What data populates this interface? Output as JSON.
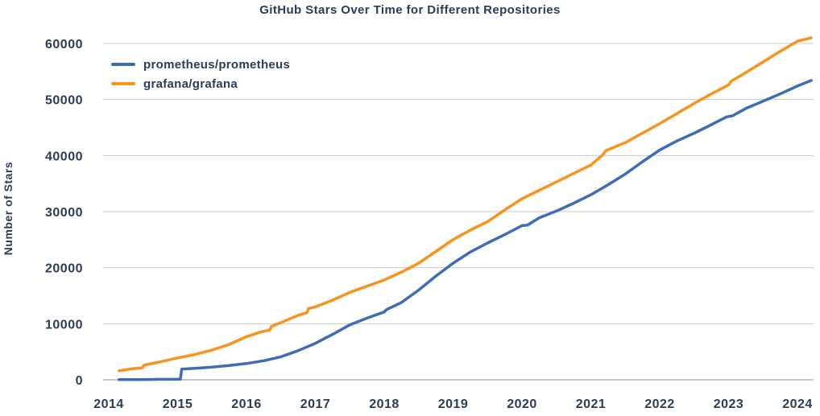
{
  "title": "GitHub Stars Over Time for Different Repositories",
  "colors": {
    "text": "#2d3c55",
    "grid": "#c9c9c9",
    "zero_line": "#8f8f8f",
    "background": "#ffffff",
    "prometheus_line": "#3e6db5",
    "grafana_line": "#f7941e"
  },
  "chart_data": {
    "type": "line",
    "title": "GitHub Stars Over Time for Different Repositories",
    "xlabel": "",
    "ylabel": "Number of Stars",
    "x_ticks": [
      2014,
      2015,
      2016,
      2017,
      2018,
      2019,
      2020,
      2021,
      2022,
      2023,
      2024
    ],
    "y_ticks": [
      0,
      10000,
      20000,
      30000,
      40000,
      50000,
      60000
    ],
    "xlim": [
      2013.9,
      2024.3
    ],
    "ylim": [
      0,
      62500
    ],
    "grid": "horizontal-only",
    "legend_position": "upper-left",
    "legend_frame": false,
    "series": [
      {
        "name": "prometheus/prometheus",
        "color": "#3e6db5",
        "points": [
          [
            2014.15,
            30
          ],
          [
            2014.5,
            50
          ],
          [
            2014.75,
            80
          ],
          [
            2015.0,
            100
          ],
          [
            2015.04,
            120
          ],
          [
            2015.06,
            1900
          ],
          [
            2015.25,
            2050
          ],
          [
            2015.5,
            2250
          ],
          [
            2015.75,
            2550
          ],
          [
            2016.0,
            2900
          ],
          [
            2016.25,
            3400
          ],
          [
            2016.5,
            4100
          ],
          [
            2016.75,
            5200
          ],
          [
            2017.0,
            6500
          ],
          [
            2017.25,
            8100
          ],
          [
            2017.5,
            9800
          ],
          [
            2017.75,
            11000
          ],
          [
            2018.0,
            12100
          ],
          [
            2018.03,
            12500
          ],
          [
            2018.25,
            13800
          ],
          [
            2018.5,
            16000
          ],
          [
            2018.75,
            18500
          ],
          [
            2019.0,
            20800
          ],
          [
            2019.25,
            22800
          ],
          [
            2019.5,
            24400
          ],
          [
            2019.75,
            25900
          ],
          [
            2020.0,
            27500
          ],
          [
            2020.08,
            27600
          ],
          [
            2020.25,
            28900
          ],
          [
            2020.5,
            30100
          ],
          [
            2020.75,
            31500
          ],
          [
            2021.0,
            33000
          ],
          [
            2021.25,
            34800
          ],
          [
            2021.5,
            36700
          ],
          [
            2021.75,
            38900
          ],
          [
            2022.0,
            41000
          ],
          [
            2022.25,
            42600
          ],
          [
            2022.5,
            44000
          ],
          [
            2022.75,
            45500
          ],
          [
            2022.97,
            46900
          ],
          [
            2023.06,
            47100
          ],
          [
            2023.25,
            48400
          ],
          [
            2023.5,
            49700
          ],
          [
            2023.75,
            51000
          ],
          [
            2024.0,
            52400
          ],
          [
            2024.2,
            53400
          ]
        ]
      },
      {
        "name": "grafana/grafana",
        "color": "#f7941e",
        "points": [
          [
            2014.15,
            1600
          ],
          [
            2014.3,
            1900
          ],
          [
            2014.49,
            2150
          ],
          [
            2014.51,
            2600
          ],
          [
            2014.75,
            3200
          ],
          [
            2015.0,
            3900
          ],
          [
            2015.25,
            4500
          ],
          [
            2015.5,
            5300
          ],
          [
            2015.75,
            6300
          ],
          [
            2016.0,
            7700
          ],
          [
            2016.2,
            8500
          ],
          [
            2016.34,
            8900
          ],
          [
            2016.36,
            9500
          ],
          [
            2016.5,
            10200
          ],
          [
            2016.75,
            11500
          ],
          [
            2016.88,
            12000
          ],
          [
            2016.9,
            12700
          ],
          [
            2017.0,
            13000
          ],
          [
            2017.25,
            14200
          ],
          [
            2017.5,
            15600
          ],
          [
            2017.75,
            16700
          ],
          [
            2018.0,
            17800
          ],
          [
            2018.25,
            19200
          ],
          [
            2018.5,
            20800
          ],
          [
            2018.75,
            22900
          ],
          [
            2019.0,
            25000
          ],
          [
            2019.25,
            26700
          ],
          [
            2019.5,
            28200
          ],
          [
            2019.75,
            30300
          ],
          [
            2020.0,
            32300
          ],
          [
            2020.25,
            33800
          ],
          [
            2020.5,
            35300
          ],
          [
            2020.75,
            36800
          ],
          [
            2021.0,
            38300
          ],
          [
            2021.18,
            40200
          ],
          [
            2021.22,
            40900
          ],
          [
            2021.5,
            42300
          ],
          [
            2021.75,
            44000
          ],
          [
            2022.0,
            45700
          ],
          [
            2022.25,
            47500
          ],
          [
            2022.5,
            49300
          ],
          [
            2022.75,
            51000
          ],
          [
            2023.0,
            52600
          ],
          [
            2023.04,
            53300
          ],
          [
            2023.25,
            54800
          ],
          [
            2023.5,
            56700
          ],
          [
            2023.75,
            58600
          ],
          [
            2024.0,
            60400
          ],
          [
            2024.2,
            61000
          ]
        ]
      }
    ]
  }
}
